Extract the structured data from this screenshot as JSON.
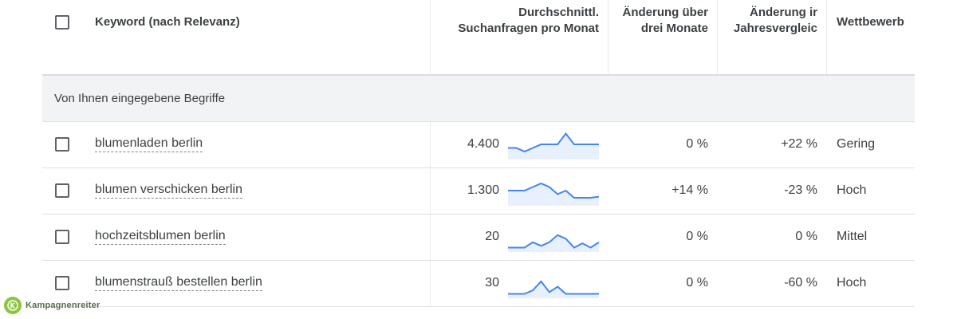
{
  "header": {
    "keyword": "Keyword (nach Relevanz)",
    "avg_line1": "Durchschnittl.",
    "avg_line2": "Suchanfragen pro Monat",
    "three_line1": "Änderung über",
    "three_line2": "drei Monate",
    "yoy_line1": "Änderung ir",
    "yoy_line2": "Jahresvergleic",
    "competition": "Wettbewerb"
  },
  "group_label": "Von Ihnen eingegebene Begriffe",
  "rows": [
    {
      "keyword": "blumenladen berlin",
      "avg": "4.400",
      "three_month": "0 %",
      "yoy": "+22 %",
      "competition": "Gering",
      "trend": [
        3,
        3,
        2,
        3,
        4,
        4,
        4,
        7,
        4,
        4,
        4,
        4
      ]
    },
    {
      "keyword": "blumen verschicken berlin",
      "avg": "1.300",
      "three_month": "+14 %",
      "yoy": "-23 %",
      "competition": "Hoch",
      "trend": [
        4,
        4,
        4,
        5,
        6,
        5,
        3,
        4,
        2,
        2,
        2,
        2.3
      ]
    },
    {
      "keyword": "hochzeitsblumen berlin",
      "avg": "20",
      "three_month": "0 %",
      "yoy": "0 %",
      "competition": "Mittel",
      "trend": [
        1,
        1,
        1,
        2.5,
        1.5,
        2.5,
        4.5,
        3.5,
        1,
        2.2,
        1,
        2.5
      ]
    },
    {
      "keyword": "blumenstrauß bestellen berlin",
      "avg": "30",
      "three_month": "0 %",
      "yoy": "-60 %",
      "competition": "Hoch",
      "trend": [
        1,
        1,
        1,
        2,
        4.5,
        1.5,
        3,
        1,
        1,
        1,
        1,
        1
      ]
    }
  ],
  "brand": {
    "name": "Kampagnenreiter",
    "accent": "#8cc63f",
    "line_color": "#4285f4",
    "fill_color": "#e8f0fe"
  }
}
